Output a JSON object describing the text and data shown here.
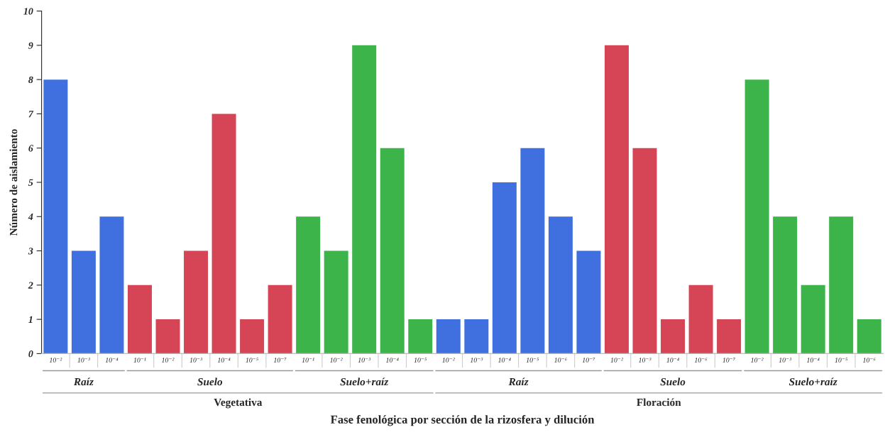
{
  "chart_data": {
    "type": "bar",
    "ylabel": "Número de aislamiento",
    "xlabel": "Fase fenológica por sección de la rizosfera y dilución",
    "categories": [
      "10⁻²",
      "10⁻³",
      "10⁻⁴",
      "10⁻¹",
      "10⁻²",
      "10⁻³",
      "10⁻⁴",
      "10⁻⁵",
      "10⁻⁷",
      "10⁻¹",
      "10⁻²",
      "10⁻³",
      "10⁻⁴",
      "10⁻⁵",
      "10⁻²",
      "10⁻³",
      "10⁻⁴",
      "10⁻⁵",
      "10⁻⁶",
      "10⁻⁷",
      "10⁻²",
      "10⁻³",
      "10⁻⁴",
      "10⁻⁶",
      "10⁻⁷",
      "10⁻²",
      "10⁻³",
      "10⁻⁴",
      "10⁻⁵",
      "10⁻⁶"
    ],
    "values": [
      8,
      3,
      4,
      2,
      1,
      3,
      7,
      1,
      2,
      4,
      3,
      9,
      6,
      1,
      1,
      1,
      5,
      6,
      4,
      3,
      9,
      6,
      1,
      2,
      1,
      8,
      4,
      2,
      4,
      1
    ],
    "colors": [
      "#4070e0",
      "#4070e0",
      "#4070e0",
      "#d64555",
      "#d64555",
      "#d64555",
      "#d64555",
      "#d64555",
      "#d64555",
      "#3cb44a",
      "#3cb44a",
      "#3cb44a",
      "#3cb44a",
      "#3cb44a",
      "#4070e0",
      "#4070e0",
      "#4070e0",
      "#4070e0",
      "#4070e0",
      "#4070e0",
      "#d64555",
      "#d64555",
      "#d64555",
      "#d64555",
      "#d64555",
      "#3cb44a",
      "#3cb44a",
      "#3cb44a",
      "#3cb44a",
      "#3cb44a"
    ],
    "annotations": [
      "Raíz",
      "Suelo",
      "Suelo+raíz",
      "Raíz",
      "Suelo",
      "Suelo+raíz",
      "Vegetativa",
      "Floración"
    ],
    "ylim": [
      0,
      10
    ],
    "yticks": [
      0,
      1,
      2,
      3,
      4,
      5,
      6,
      7,
      8,
      9,
      10
    ],
    "grid": false,
    "legend": false
  }
}
